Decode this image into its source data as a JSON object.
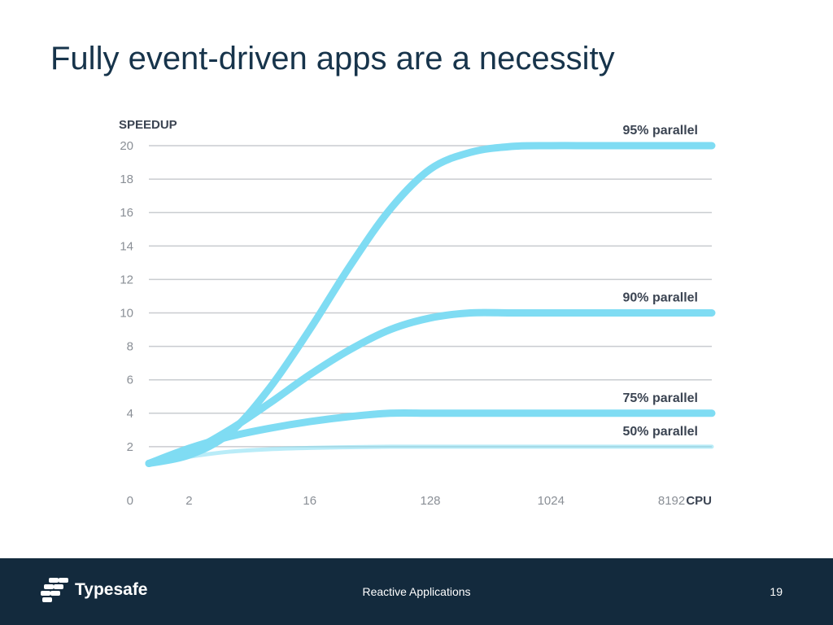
{
  "slide": {
    "title": "Fully event-driven apps are a necessity"
  },
  "footer": {
    "logo_text": "Typesafe",
    "center_text": "Reactive Applications",
    "page_number": "19"
  },
  "colors": {
    "title": "#17344b",
    "footer_bg": "#132a3d",
    "line": "#7fdcf3",
    "grid": "#c9ccd0",
    "axis_text": "#8a8f96",
    "label_text": "#3b4452"
  },
  "chart_data": {
    "type": "line",
    "ylabel": "SPEEDUP",
    "xlabel": "CPU",
    "ylim": [
      0,
      20
    ],
    "yticks": [
      "0",
      "2",
      "4",
      "6",
      "8",
      "10",
      "12",
      "14",
      "16",
      "18",
      "20"
    ],
    "xticks": [
      "2",
      "16",
      "128",
      "1024",
      "8192"
    ],
    "x_scale": "log2",
    "grid": true,
    "series": [
      {
        "name": "95% parallel",
        "x": [
          1,
          2,
          4,
          8,
          16,
          32,
          64,
          128,
          256,
          512,
          1024,
          2048,
          4096,
          8192,
          16384
        ],
        "values": [
          1,
          1.5,
          2.8,
          5.5,
          9.0,
          12.8,
          16.2,
          18.6,
          19.6,
          19.95,
          20,
          20,
          20,
          20,
          20
        ]
      },
      {
        "name": "90% parallel",
        "x": [
          1,
          2,
          4,
          8,
          16,
          32,
          64,
          128,
          256,
          512,
          1024,
          2048,
          4096,
          8192,
          16384
        ],
        "values": [
          1,
          1.7,
          3.0,
          4.6,
          6.3,
          7.8,
          9.0,
          9.7,
          10,
          10,
          10,
          10,
          10,
          10,
          10
        ]
      },
      {
        "name": "75% parallel",
        "x": [
          1,
          2,
          4,
          8,
          16,
          32,
          64,
          128,
          256,
          512,
          1024,
          2048,
          4096,
          8192,
          16384
        ],
        "values": [
          1,
          1.9,
          2.6,
          3.1,
          3.5,
          3.8,
          4,
          4,
          4,
          4,
          4,
          4,
          4,
          4,
          4
        ]
      },
      {
        "name": "50% parallel",
        "x": [
          1,
          2,
          4,
          8,
          16,
          32,
          64,
          128,
          256,
          512,
          1024,
          2048,
          4096,
          8192,
          16384
        ],
        "values": [
          1,
          1.4,
          1.7,
          1.85,
          1.93,
          1.97,
          2,
          2,
          2,
          2,
          2,
          2,
          2,
          2,
          2
        ]
      }
    ]
  }
}
